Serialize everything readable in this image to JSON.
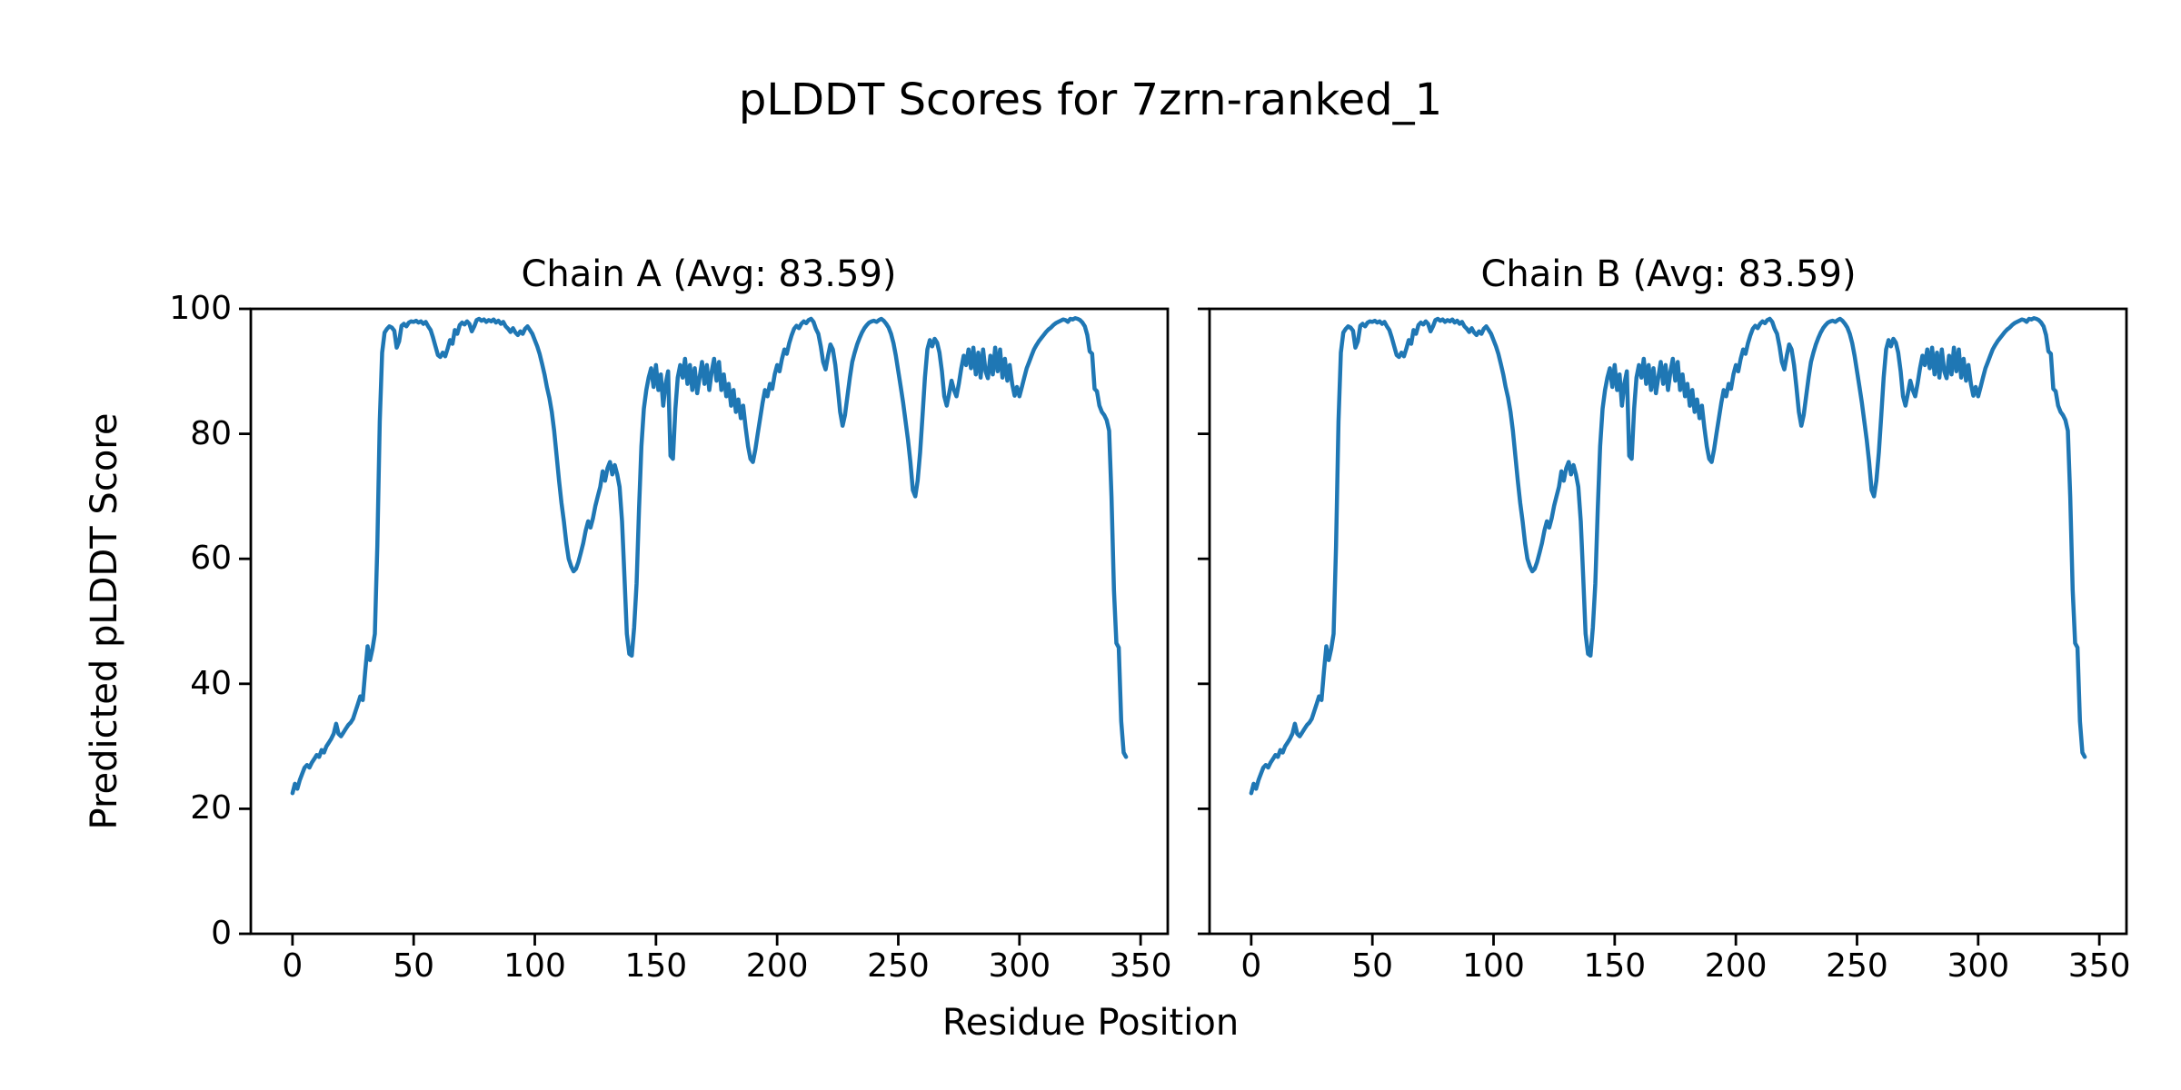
{
  "figure": {
    "title": "pLDDT Scores for 7zrn-ranked_1",
    "xlabel": "Residue Position",
    "ylabel": "Predicted pLDDT Score",
    "background_color": "#ffffff",
    "text_color": "#000000",
    "line_color": "#1f77b4"
  },
  "chart_data": [
    {
      "type": "line",
      "title": "Chain A (Avg: 83.59)",
      "chain": "A",
      "average_plddt": 83.59,
      "xlabel": "Residue Position",
      "ylabel": "Predicted pLDDT Score",
      "xlim": [
        -17.2,
        361.2
      ],
      "ylim": [
        0,
        100
      ],
      "x_ticks": [
        0,
        50,
        100,
        150,
        200,
        250,
        300,
        350
      ],
      "y_ticks": [
        0,
        20,
        40,
        60,
        80,
        100
      ],
      "y_tick_labels_visible": true,
      "grid": false,
      "legend": "none",
      "series": [
        {
          "name": "Chain A pLDDT",
          "color": "#1f77b4",
          "x_start": 0,
          "x_step": 1,
          "values": [
            22.5,
            24.0,
            23.2,
            24.6,
            25.6,
            26.6,
            27.0,
            26.6,
            27.4,
            28.0,
            28.6,
            28.3,
            29.4,
            29.0,
            30.0,
            30.6,
            31.2,
            32.0,
            33.6,
            32.0,
            31.6,
            32.2,
            32.8,
            33.4,
            33.8,
            34.4,
            35.6,
            36.8,
            38.0,
            37.4,
            42.0,
            46.0,
            43.8,
            45.6,
            48.0,
            62.0,
            82.0,
            93.0,
            96.2,
            96.8,
            97.2,
            97.0,
            96.5,
            93.8,
            94.8,
            97.3,
            97.6,
            97.2,
            97.8,
            98.0,
            97.9,
            98.1,
            97.8,
            98.0,
            97.6,
            97.9,
            97.2,
            96.6,
            95.4,
            94.0,
            92.6,
            92.3,
            93.0,
            92.4,
            93.6,
            95.0,
            94.4,
            96.6,
            96.0,
            97.4,
            97.8,
            97.5,
            98.0,
            97.6,
            96.4,
            97.2,
            98.2,
            98.4,
            98.1,
            98.3,
            97.9,
            98.2,
            98.0,
            98.3,
            97.8,
            98.1,
            97.6,
            97.9,
            97.2,
            96.8,
            96.3,
            96.9,
            96.2,
            95.8,
            96.4,
            96.0,
            96.8,
            97.2,
            96.6,
            96.0,
            95.0,
            94.0,
            92.8,
            91.2,
            89.5,
            87.5,
            85.8,
            83.5,
            80.5,
            76.5,
            72.5,
            69.0,
            66.0,
            62.5,
            60.0,
            58.8,
            58.0,
            58.4,
            59.5,
            61.0,
            62.5,
            64.5,
            66.0,
            65.0,
            66.5,
            68.5,
            70.0,
            71.5,
            74.0,
            72.5,
            74.5,
            75.5,
            73.5,
            75.0,
            73.5,
            71.5,
            66.0,
            57.0,
            48.0,
            44.8,
            44.5,
            49.0,
            56.0,
            68.0,
            78.0,
            84.0,
            87.0,
            89.0,
            90.5,
            87.5,
            91.0,
            87.0,
            89.5,
            84.5,
            88.0,
            90.0,
            76.5,
            76.0,
            84.0,
            89.0,
            91.0,
            89.0,
            92.0,
            88.0,
            91.0,
            87.0,
            90.5,
            86.5,
            89.0,
            91.5,
            88.0,
            91.0,
            87.0,
            90.0,
            92.0,
            88.5,
            91.5,
            87.0,
            89.5,
            86.0,
            88.0,
            84.5,
            87.0,
            83.5,
            85.5,
            82.5,
            84.5,
            81.0,
            78.0,
            76.0,
            75.5,
            77.5,
            80.0,
            82.5,
            85.0,
            87.0,
            86.0,
            88.0,
            87.2,
            89.5,
            91.0,
            90.0,
            92.0,
            93.5,
            92.8,
            94.5,
            95.8,
            96.8,
            97.3,
            96.9,
            97.6,
            98.0,
            97.7,
            98.2,
            98.4,
            97.9,
            96.8,
            96.0,
            94.0,
            91.5,
            90.3,
            92.5,
            94.3,
            93.5,
            91.0,
            87.5,
            83.5,
            81.3,
            83.0,
            86.0,
            89.0,
            91.5,
            93.0,
            94.3,
            95.3,
            96.2,
            96.9,
            97.4,
            97.8,
            98.0,
            98.1,
            97.9,
            98.2,
            98.4,
            98.1,
            97.6,
            97.0,
            96.0,
            94.5,
            92.5,
            90.0,
            87.5,
            85.0,
            82.0,
            79.0,
            75.5,
            71.0,
            70.0,
            72.5,
            77.0,
            83.0,
            89.0,
            93.5,
            95.0,
            94.0,
            95.2,
            94.6,
            93.0,
            90.0,
            86.0,
            84.5,
            86.5,
            88.5,
            87.0,
            86.0,
            88.0,
            90.5,
            92.5,
            91.0,
            93.5,
            90.5,
            93.8,
            89.5,
            93.0,
            89.0,
            93.5,
            90.0,
            88.9,
            92.5,
            89.5,
            93.8,
            90.0,
            93.5,
            89.0,
            92.0,
            88.5,
            91.0,
            88.0,
            86.1,
            87.5,
            86.0,
            87.5,
            89.0,
            90.5,
            91.5,
            92.5,
            93.5,
            94.2,
            94.8,
            95.3,
            95.8,
            96.3,
            96.7,
            97.0,
            97.4,
            97.7,
            97.9,
            98.1,
            98.3,
            98.2,
            97.9,
            98.4,
            98.3,
            98.5,
            98.4,
            98.2,
            97.8,
            97.2,
            95.8,
            93.2,
            92.8,
            87.2,
            86.8,
            84.5,
            83.5,
            83.0,
            82.2,
            80.5,
            70.0,
            55.0,
            46.5,
            45.8,
            34.0,
            29.0,
            28.3
          ]
        }
      ]
    },
    {
      "type": "line",
      "title": "Chain B (Avg: 83.59)",
      "chain": "B",
      "average_plddt": 83.59,
      "xlabel": "Residue Position",
      "ylabel": "Predicted pLDDT Score",
      "xlim": [
        -17.2,
        361.2
      ],
      "ylim": [
        0,
        100
      ],
      "x_ticks": [
        0,
        50,
        100,
        150,
        200,
        250,
        300,
        350
      ],
      "y_ticks": [
        0,
        20,
        40,
        60,
        80,
        100
      ],
      "y_tick_labels_visible": false,
      "grid": false,
      "legend": "none",
      "series": [
        {
          "name": "Chain B pLDDT",
          "color": "#1f77b4",
          "x_start": 0,
          "x_step": 1,
          "values": [
            22.5,
            24.0,
            23.2,
            24.6,
            25.6,
            26.6,
            27.0,
            26.6,
            27.4,
            28.0,
            28.6,
            28.3,
            29.4,
            29.0,
            30.0,
            30.6,
            31.2,
            32.0,
            33.6,
            32.0,
            31.6,
            32.2,
            32.8,
            33.4,
            33.8,
            34.4,
            35.6,
            36.8,
            38.0,
            37.4,
            42.0,
            46.0,
            43.8,
            45.6,
            48.0,
            62.0,
            82.0,
            93.0,
            96.2,
            96.8,
            97.2,
            97.0,
            96.5,
            93.8,
            94.8,
            97.3,
            97.6,
            97.2,
            97.8,
            98.0,
            97.9,
            98.1,
            97.8,
            98.0,
            97.6,
            97.9,
            97.2,
            96.6,
            95.4,
            94.0,
            92.6,
            92.3,
            93.0,
            92.4,
            93.6,
            95.0,
            94.4,
            96.6,
            96.0,
            97.4,
            97.8,
            97.5,
            98.0,
            97.6,
            96.4,
            97.2,
            98.2,
            98.4,
            98.1,
            98.3,
            97.9,
            98.2,
            98.0,
            98.3,
            97.8,
            98.1,
            97.6,
            97.9,
            97.2,
            96.8,
            96.3,
            96.9,
            96.2,
            95.8,
            96.4,
            96.0,
            96.8,
            97.2,
            96.6,
            96.0,
            95.0,
            94.0,
            92.8,
            91.2,
            89.5,
            87.5,
            85.8,
            83.5,
            80.5,
            76.5,
            72.5,
            69.0,
            66.0,
            62.5,
            60.0,
            58.8,
            58.0,
            58.4,
            59.5,
            61.0,
            62.5,
            64.5,
            66.0,
            65.0,
            66.5,
            68.5,
            70.0,
            71.5,
            74.0,
            72.5,
            74.5,
            75.5,
            73.5,
            75.0,
            73.5,
            71.5,
            66.0,
            57.0,
            48.0,
            44.8,
            44.5,
            49.0,
            56.0,
            68.0,
            78.0,
            84.0,
            87.0,
            89.0,
            90.5,
            87.5,
            91.0,
            87.0,
            89.5,
            84.5,
            88.0,
            90.0,
            76.5,
            76.0,
            84.0,
            89.0,
            91.0,
            89.0,
            92.0,
            88.0,
            91.0,
            87.0,
            90.5,
            86.5,
            89.0,
            91.5,
            88.0,
            91.0,
            87.0,
            90.0,
            92.0,
            88.5,
            91.5,
            87.0,
            89.5,
            86.0,
            88.0,
            84.5,
            87.0,
            83.5,
            85.5,
            82.5,
            84.5,
            81.0,
            78.0,
            76.0,
            75.5,
            77.5,
            80.0,
            82.5,
            85.0,
            87.0,
            86.0,
            88.0,
            87.2,
            89.5,
            91.0,
            90.0,
            92.0,
            93.5,
            92.8,
            94.5,
            95.8,
            96.8,
            97.3,
            96.9,
            97.6,
            98.0,
            97.7,
            98.2,
            98.4,
            97.9,
            96.8,
            96.0,
            94.0,
            91.5,
            90.3,
            92.5,
            94.3,
            93.5,
            91.0,
            87.5,
            83.5,
            81.3,
            83.0,
            86.0,
            89.0,
            91.5,
            93.0,
            94.3,
            95.3,
            96.2,
            96.9,
            97.4,
            97.8,
            98.0,
            98.1,
            97.9,
            98.2,
            98.4,
            98.1,
            97.6,
            97.0,
            96.0,
            94.5,
            92.5,
            90.0,
            87.5,
            85.0,
            82.0,
            79.0,
            75.5,
            71.0,
            70.0,
            72.5,
            77.0,
            83.0,
            89.0,
            93.5,
            95.0,
            94.0,
            95.2,
            94.6,
            93.0,
            90.0,
            86.0,
            84.5,
            86.5,
            88.5,
            87.0,
            86.0,
            88.0,
            90.5,
            92.5,
            91.0,
            93.5,
            90.5,
            93.8,
            89.5,
            93.0,
            89.0,
            93.5,
            90.0,
            88.9,
            92.5,
            89.5,
            93.8,
            90.0,
            93.5,
            89.0,
            92.0,
            88.5,
            91.0,
            88.0,
            86.1,
            87.5,
            86.0,
            87.5,
            89.0,
            90.5,
            91.5,
            92.5,
            93.5,
            94.2,
            94.8,
            95.3,
            95.8,
            96.3,
            96.7,
            97.0,
            97.4,
            97.7,
            97.9,
            98.1,
            98.3,
            98.2,
            97.9,
            98.4,
            98.3,
            98.5,
            98.4,
            98.2,
            97.8,
            97.2,
            95.8,
            93.2,
            92.8,
            87.2,
            86.8,
            84.5,
            83.5,
            83.0,
            82.2,
            80.5,
            70.0,
            55.0,
            46.5,
            45.8,
            34.0,
            29.0,
            28.3
          ]
        }
      ]
    }
  ]
}
